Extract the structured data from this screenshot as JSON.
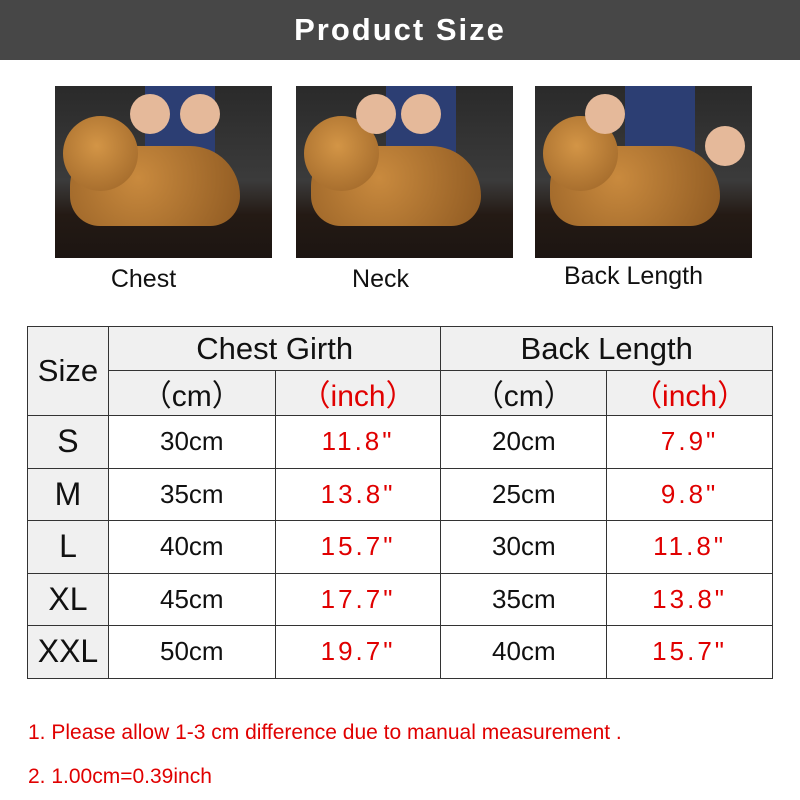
{
  "title": "Product Size",
  "photos": [
    {
      "label": "Chest"
    },
    {
      "label": "Neck"
    },
    {
      "label": "Back Length"
    }
  ],
  "table": {
    "size_header": "Size",
    "groups": [
      "Chest Girth",
      "Back Length"
    ],
    "units": [
      "（cm）",
      "（inch）",
      "（cm）",
      "（inch）"
    ],
    "rows": [
      {
        "size": "S",
        "chest_cm": "30cm",
        "chest_in": "11.8\"",
        "back_cm": "20cm",
        "back_in": "7.9\""
      },
      {
        "size": "M",
        "chest_cm": "35cm",
        "chest_in": "13.8\"",
        "back_cm": "25cm",
        "back_in": "9.8\""
      },
      {
        "size": "L",
        "chest_cm": "40cm",
        "chest_in": "15.7\"",
        "back_cm": "30cm",
        "back_in": "11.8\""
      },
      {
        "size": "XL",
        "chest_cm": "45cm",
        "chest_in": "17.7\"",
        "back_cm": "35cm",
        "back_in": "13.8\""
      },
      {
        "size": "XXL",
        "chest_cm": "50cm",
        "chest_in": "19.7\"",
        "back_cm": "40cm",
        "back_in": "15.7\""
      }
    ]
  },
  "notes": [
    "1. Please allow 1-3 cm difference due to manual measurement .",
    "2. 1.00cm=0.39inch"
  ],
  "colors": {
    "header_bg": "#474747",
    "accent_red": "#e00000"
  }
}
